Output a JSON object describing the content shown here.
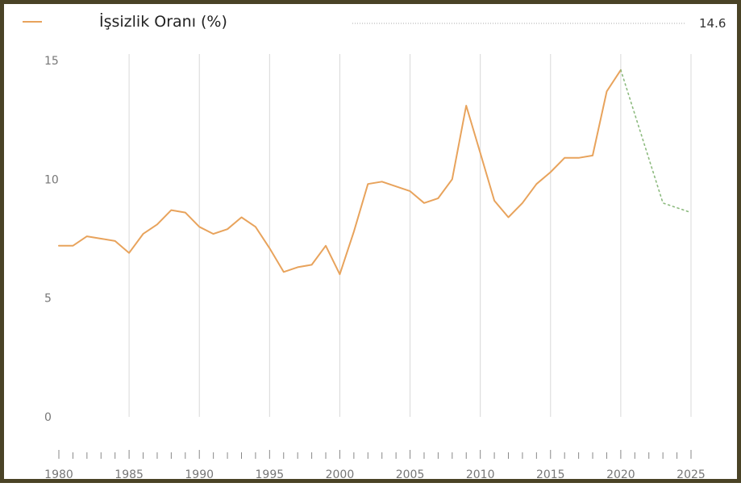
{
  "chart_data": {
    "type": "line",
    "title": "İşsizlik Oranı (%)",
    "latest_value_label": "14.6",
    "xlim": [
      1980,
      2025
    ],
    "ylim": [
      0,
      15
    ],
    "x_ticks": [
      "1980",
      "1985",
      "1990",
      "1995",
      "2000",
      "2005",
      "2010",
      "2015",
      "2020",
      "2025"
    ],
    "y_ticks": [
      "0",
      "5",
      "10",
      "15"
    ],
    "grid": "vertical",
    "colors": {
      "line": "#e8a35c",
      "projection": "#8cba7e",
      "grid": "#d8d8d8",
      "frame": "#4a4326"
    },
    "series": [
      {
        "name": "İşsizlik Oranı (%)",
        "x": [
          1980,
          1981,
          1982,
          1983,
          1984,
          1985,
          1986,
          1987,
          1988,
          1989,
          1990,
          1991,
          1992,
          1993,
          1994,
          1995,
          1996,
          1997,
          1998,
          1999,
          2000,
          2001,
          2002,
          2003,
          2004,
          2005,
          2006,
          2007,
          2008,
          2009,
          2010,
          2011,
          2012,
          2013,
          2014,
          2015,
          2016,
          2017,
          2018,
          2019,
          2020
        ],
        "values": [
          7.2,
          7.2,
          7.6,
          7.5,
          7.4,
          6.9,
          7.7,
          8.1,
          8.7,
          8.6,
          8.0,
          7.7,
          7.9,
          8.4,
          8.0,
          7.1,
          6.1,
          6.3,
          6.4,
          7.2,
          6.0,
          7.8,
          9.8,
          9.9,
          9.7,
          9.5,
          9.0,
          9.2,
          10.0,
          13.1,
          11.1,
          9.1,
          8.4,
          9.0,
          9.8,
          10.3,
          10.9,
          10.9,
          11.0,
          13.7,
          14.6
        ]
      },
      {
        "name": "",
        "style": "dotted",
        "x": [
          2020,
          2023,
          2025
        ],
        "values": [
          14.6,
          9.0,
          8.6
        ]
      }
    ]
  }
}
